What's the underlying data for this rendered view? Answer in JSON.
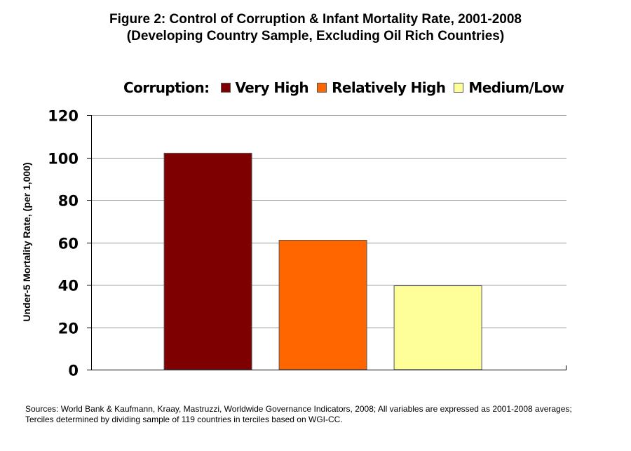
{
  "chart_data": {
    "type": "bar",
    "title": [
      "Figure 2: Control of Corruption & Infant Mortality Rate, 2001-2008",
      "(Developing Country Sample, Excluding Oil Rich Countries)"
    ],
    "legend_title": "Corruption:",
    "categories": [
      "Very High",
      "Relatively High",
      "Medium/Low"
    ],
    "values": [
      102,
      61,
      39.5
    ],
    "colors": [
      "#7f0000",
      "#ff6600",
      "#ffff99"
    ],
    "xlabel": "",
    "ylabel": "Under-5 Mortality Rate, (per 1,000)",
    "ylim": [
      0,
      120
    ],
    "yticks": [
      0,
      20,
      40,
      60,
      80,
      100,
      120
    ],
    "grid": true,
    "legend_position": "top"
  },
  "source_note": [
    "Sources: World Bank & Kaufmann, Kraay, Mastruzzi, Worldwide Governance Indicators, 2008; All variables are expressed as 2001-2008 averages;",
    "Terciles determined by dividing sample of 119 countries in terciles based on WGI-CC."
  ]
}
